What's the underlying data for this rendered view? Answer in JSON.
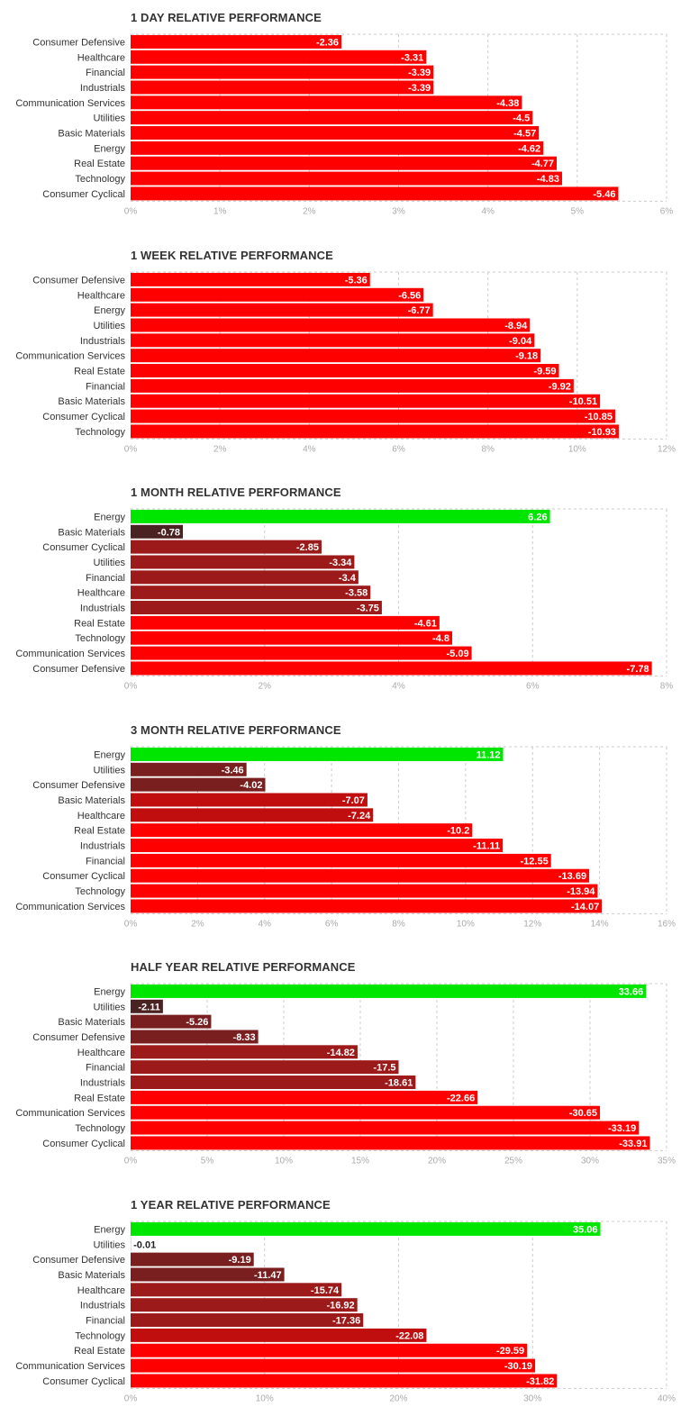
{
  "colors": {
    "negative_strong": "#ff0000",
    "negative_mid1": "#c00e0e",
    "negative_mid2": "#9c1a1a",
    "negative_mid3": "#7a1f1f",
    "negative_weak": "#4a2222",
    "positive": "#00e600",
    "grid": "#cccccc"
  },
  "chart_data": [
    {
      "type": "bar",
      "orientation": "horizontal",
      "title": "1 DAY RELATIVE PERFORMANCE",
      "categories": [
        "Consumer Defensive",
        "Healthcare",
        "Financial",
        "Industrials",
        "Communication Services",
        "Utilities",
        "Basic Materials",
        "Energy",
        "Real Estate",
        "Technology",
        "Consumer Cyclical"
      ],
      "values": [
        -2.36,
        -3.31,
        -3.39,
        -3.39,
        -4.38,
        -4.5,
        -4.57,
        -4.62,
        -4.77,
        -4.83,
        -5.46
      ],
      "value_labels": [
        "-2.36",
        "-3.31",
        "-3.39",
        "-3.39",
        "-4.38",
        "-4.5",
        "-4.57",
        "-4.62",
        "-4.77",
        "-4.83",
        "-5.46"
      ],
      "shades": [
        "negative_strong",
        "negative_strong",
        "negative_strong",
        "negative_strong",
        "negative_strong",
        "negative_strong",
        "negative_strong",
        "negative_strong",
        "negative_strong",
        "negative_strong",
        "negative_strong"
      ],
      "xlim": [
        0,
        6
      ],
      "ticks": [
        0,
        1,
        2,
        3,
        4,
        5,
        6
      ],
      "tick_labels": [
        "0%",
        "1%",
        "2%",
        "3%",
        "4%",
        "5%",
        "6%"
      ]
    },
    {
      "type": "bar",
      "orientation": "horizontal",
      "title": "1 WEEK RELATIVE PERFORMANCE",
      "categories": [
        "Consumer Defensive",
        "Healthcare",
        "Energy",
        "Utilities",
        "Industrials",
        "Communication Services",
        "Real Estate",
        "Financial",
        "Basic Materials",
        "Consumer Cyclical",
        "Technology"
      ],
      "values": [
        -5.36,
        -6.56,
        -6.77,
        -8.94,
        -9.04,
        -9.18,
        -9.59,
        -9.92,
        -10.51,
        -10.85,
        -10.93
      ],
      "value_labels": [
        "-5.36",
        "-6.56",
        "-6.77",
        "-8.94",
        "-9.04",
        "-9.18",
        "-9.59",
        "-9.92",
        "-10.51",
        "-10.85",
        "-10.93"
      ],
      "shades": [
        "negative_strong",
        "negative_strong",
        "negative_strong",
        "negative_strong",
        "negative_strong",
        "negative_strong",
        "negative_strong",
        "negative_strong",
        "negative_strong",
        "negative_strong",
        "negative_strong"
      ],
      "xlim": [
        0,
        12
      ],
      "ticks": [
        0,
        2,
        4,
        6,
        8,
        10,
        12
      ],
      "tick_labels": [
        "0%",
        "2%",
        "4%",
        "6%",
        "8%",
        "10%",
        "12%"
      ]
    },
    {
      "type": "bar",
      "orientation": "horizontal",
      "title": "1 MONTH RELATIVE PERFORMANCE",
      "categories": [
        "Energy",
        "Basic Materials",
        "Consumer Cyclical",
        "Utilities",
        "Financial",
        "Healthcare",
        "Industrials",
        "Real Estate",
        "Technology",
        "Communication Services",
        "Consumer Defensive"
      ],
      "values": [
        6.26,
        -0.78,
        -2.85,
        -3.34,
        -3.4,
        -3.58,
        -3.75,
        -4.61,
        -4.8,
        -5.09,
        -7.78
      ],
      "value_labels": [
        "6.26",
        "-0.78",
        "-2.85",
        "-3.34",
        "-3.4",
        "-3.58",
        "-3.75",
        "-4.61",
        "-4.8",
        "-5.09",
        "-7.78"
      ],
      "shades": [
        "positive",
        "negative_weak",
        "negative_mid2",
        "negative_mid2",
        "negative_mid2",
        "negative_mid2",
        "negative_mid2",
        "negative_strong",
        "negative_strong",
        "negative_strong",
        "negative_strong"
      ],
      "xlim": [
        0,
        8
      ],
      "ticks": [
        0,
        2,
        4,
        6,
        8
      ],
      "tick_labels": [
        "0%",
        "2%",
        "4%",
        "6%",
        "8%"
      ]
    },
    {
      "type": "bar",
      "orientation": "horizontal",
      "title": "3 MONTH RELATIVE PERFORMANCE",
      "categories": [
        "Energy",
        "Utilities",
        "Consumer Defensive",
        "Basic Materials",
        "Healthcare",
        "Real Estate",
        "Industrials",
        "Financial",
        "Consumer Cyclical",
        "Technology",
        "Communication Services"
      ],
      "values": [
        11.12,
        -3.46,
        -4.02,
        -7.07,
        -7.24,
        -10.2,
        -11.11,
        -12.55,
        -13.69,
        -13.94,
        -14.07
      ],
      "value_labels": [
        "11.12",
        "-3.46",
        "-4.02",
        "-7.07",
        "-7.24",
        "-10.2",
        "-11.11",
        "-12.55",
        "-13.69",
        "-13.94",
        "-14.07"
      ],
      "shades": [
        "positive",
        "negative_mid3",
        "negative_mid3",
        "negative_mid1",
        "negative_mid1",
        "negative_strong",
        "negative_strong",
        "negative_strong",
        "negative_strong",
        "negative_strong",
        "negative_strong"
      ],
      "xlim": [
        0,
        16
      ],
      "ticks": [
        0,
        2,
        4,
        6,
        8,
        10,
        12,
        14,
        16
      ],
      "tick_labels": [
        "0%",
        "2%",
        "4%",
        "6%",
        "8%",
        "10%",
        "12%",
        "14%",
        "16%"
      ]
    },
    {
      "type": "bar",
      "orientation": "horizontal",
      "title": "HALF YEAR RELATIVE PERFORMANCE",
      "categories": [
        "Energy",
        "Utilities",
        "Basic Materials",
        "Consumer Defensive",
        "Healthcare",
        "Financial",
        "Industrials",
        "Real Estate",
        "Communication Services",
        "Technology",
        "Consumer Cyclical"
      ],
      "values": [
        33.66,
        -2.11,
        -5.26,
        -8.33,
        -14.82,
        -17.5,
        -18.61,
        -22.66,
        -30.65,
        -33.19,
        -33.91
      ],
      "value_labels": [
        "33.66",
        "-2.11",
        "-5.26",
        "-8.33",
        "-14.82",
        "-17.5",
        "-18.61",
        "-22.66",
        "-30.65",
        "-33.19",
        "-33.91"
      ],
      "shades": [
        "positive",
        "negative_weak",
        "negative_mid3",
        "negative_mid3",
        "negative_mid2",
        "negative_mid2",
        "negative_mid2",
        "negative_strong",
        "negative_strong",
        "negative_strong",
        "negative_strong"
      ],
      "xlim": [
        0,
        35
      ],
      "ticks": [
        0,
        5,
        10,
        15,
        20,
        25,
        30,
        35
      ],
      "tick_labels": [
        "0%",
        "5%",
        "10%",
        "15%",
        "20%",
        "25%",
        "30%",
        "35%"
      ]
    },
    {
      "type": "bar",
      "orientation": "horizontal",
      "title": "1 YEAR RELATIVE PERFORMANCE",
      "categories": [
        "Energy",
        "Utilities",
        "Consumer Defensive",
        "Basic Materials",
        "Healthcare",
        "Industrials",
        "Financial",
        "Technology",
        "Real Estate",
        "Communication Services",
        "Consumer Cyclical"
      ],
      "values": [
        35.06,
        -0.01,
        -9.19,
        -11.47,
        -15.74,
        -16.92,
        -17.36,
        -22.08,
        -29.59,
        -30.19,
        -31.82
      ],
      "value_labels": [
        "35.06",
        "-0.01",
        "-9.19",
        "-11.47",
        "-15.74",
        "-16.92",
        "-17.36",
        "-22.08",
        "-29.59",
        "-30.19",
        "-31.82"
      ],
      "shades": [
        "positive",
        "negative_weak",
        "negative_mid3",
        "negative_mid3",
        "negative_mid2",
        "negative_mid2",
        "negative_mid2",
        "negative_mid1",
        "negative_strong",
        "negative_strong",
        "negative_strong"
      ],
      "xlim": [
        0,
        40
      ],
      "ticks": [
        0,
        10,
        20,
        30,
        40
      ],
      "tick_labels": [
        "0%",
        "10%",
        "20%",
        "30%",
        "40%"
      ]
    }
  ]
}
